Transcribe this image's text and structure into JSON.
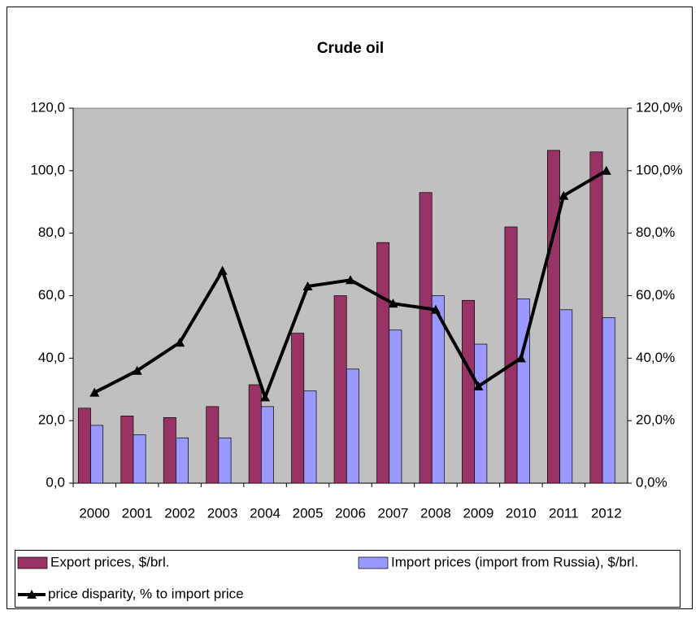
{
  "chart_data": {
    "type": "bar-line",
    "title": "Crude oil",
    "categories": [
      "2000",
      "2001",
      "2002",
      "2003",
      "2004",
      "2005",
      "2006",
      "2007",
      "2008",
      "2009",
      "2010",
      "2011",
      "2012"
    ],
    "series": [
      {
        "name": "Export prices, $/brl.",
        "type": "bar",
        "color": "#993366",
        "values": [
          24,
          21.5,
          21,
          24.5,
          31.5,
          48,
          60,
          77,
          93,
          58.5,
          82,
          106.5,
          106
        ]
      },
      {
        "name": "Import prices (import from Russia), $/brl.",
        "type": "bar",
        "color": "#9999ff",
        "values": [
          18.5,
          15.5,
          14.5,
          14.5,
          24.5,
          29.5,
          36.5,
          49,
          60,
          44.5,
          59,
          55.5,
          53
        ]
      },
      {
        "name": "price disparity, % to import price",
        "type": "line",
        "axis": "y2",
        "color": "#000000",
        "values": [
          29,
          36,
          45,
          68,
          27.5,
          63,
          65,
          57.5,
          55.5,
          31,
          40,
          92,
          100
        ]
      }
    ],
    "ylim": [
      0,
      120
    ],
    "yticks": [
      {
        "value": 0,
        "label": "0,0"
      },
      {
        "value": 20,
        "label": "20,0"
      },
      {
        "value": 40,
        "label": "40,0"
      },
      {
        "value": 60,
        "label": "60,0"
      },
      {
        "value": 80,
        "label": "80,0"
      },
      {
        "value": 100,
        "label": "100,0"
      },
      {
        "value": 120,
        "label": "120,0"
      }
    ],
    "y2lim": [
      0,
      120
    ],
    "y2ticks": [
      {
        "value": 0,
        "label": "0,0%"
      },
      {
        "value": 20,
        "label": "20,0%"
      },
      {
        "value": 40,
        "label": "40,0%"
      },
      {
        "value": 60,
        "label": "60,0%"
      },
      {
        "value": 80,
        "label": "80,0%"
      },
      {
        "value": 100,
        "label": "100,0%"
      },
      {
        "value": 120,
        "label": "120,0%"
      }
    ],
    "plot_background": "#c0c0c0"
  }
}
